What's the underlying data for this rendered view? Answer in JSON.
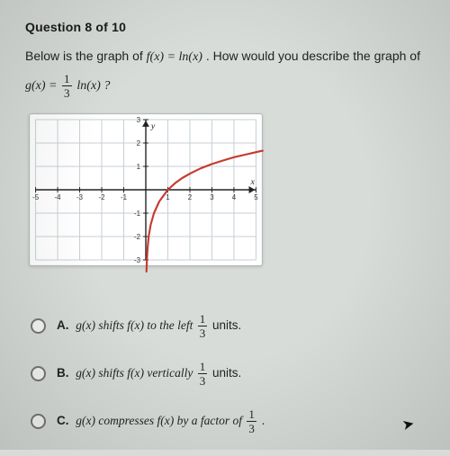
{
  "question": {
    "header": "Question 8 of 10",
    "line1_pre": "Below is the graph of ",
    "line1_fx": "f(x) = ln(x)",
    "line1_post": " . How would you describe the graph of",
    "line2_gx_pre": "g(x) = ",
    "line2_gx_post": "ln(x) ?",
    "frac_num": "1",
    "frac_den": "3"
  },
  "options": {
    "A": {
      "letter": "A.",
      "pre": "g(x) shifts f(x) to the left ",
      "post": " units."
    },
    "B": {
      "letter": "B.",
      "pre": "g(x) shifts f(x) vertically ",
      "post": " units."
    },
    "C": {
      "letter": "C.",
      "pre": "g(x) compresses f(x) by a factor of ",
      "post": "."
    }
  },
  "graph": {
    "xmin": -5,
    "xmax": 5,
    "ymin": -3,
    "ymax": 3,
    "xticks": [
      -5,
      -4,
      -3,
      -2,
      -1,
      1,
      2,
      3,
      4,
      5
    ],
    "yticks": [
      -3,
      -2,
      -1,
      1,
      2,
      3
    ],
    "axis_label_x": "x",
    "axis_label_y": "y",
    "grid_color": "#c7cfd6",
    "axis_color": "#222222",
    "curve_color": "#c73a2e",
    "curve_width": 2.2,
    "background": "#ffffff",
    "tick_fontsize": 8,
    "curve_points": [
      [
        0.03,
        -3.5
      ],
      [
        0.05,
        -3.0
      ],
      [
        0.08,
        -2.5
      ],
      [
        0.13,
        -2.0
      ],
      [
        0.22,
        -1.5
      ],
      [
        0.37,
        -1.0
      ],
      [
        0.61,
        -0.5
      ],
      [
        1.0,
        0.0
      ],
      [
        1.35,
        0.3
      ],
      [
        1.65,
        0.5
      ],
      [
        2.0,
        0.69
      ],
      [
        2.5,
        0.92
      ],
      [
        3.0,
        1.1
      ],
      [
        3.5,
        1.25
      ],
      [
        4.0,
        1.39
      ],
      [
        4.5,
        1.5
      ],
      [
        5.0,
        1.61
      ],
      [
        5.3,
        1.67
      ]
    ]
  },
  "colors": {
    "page_bg": "#d8dcd9",
    "text": "#1a1a1a",
    "panel_bg": "#fdfefe"
  }
}
